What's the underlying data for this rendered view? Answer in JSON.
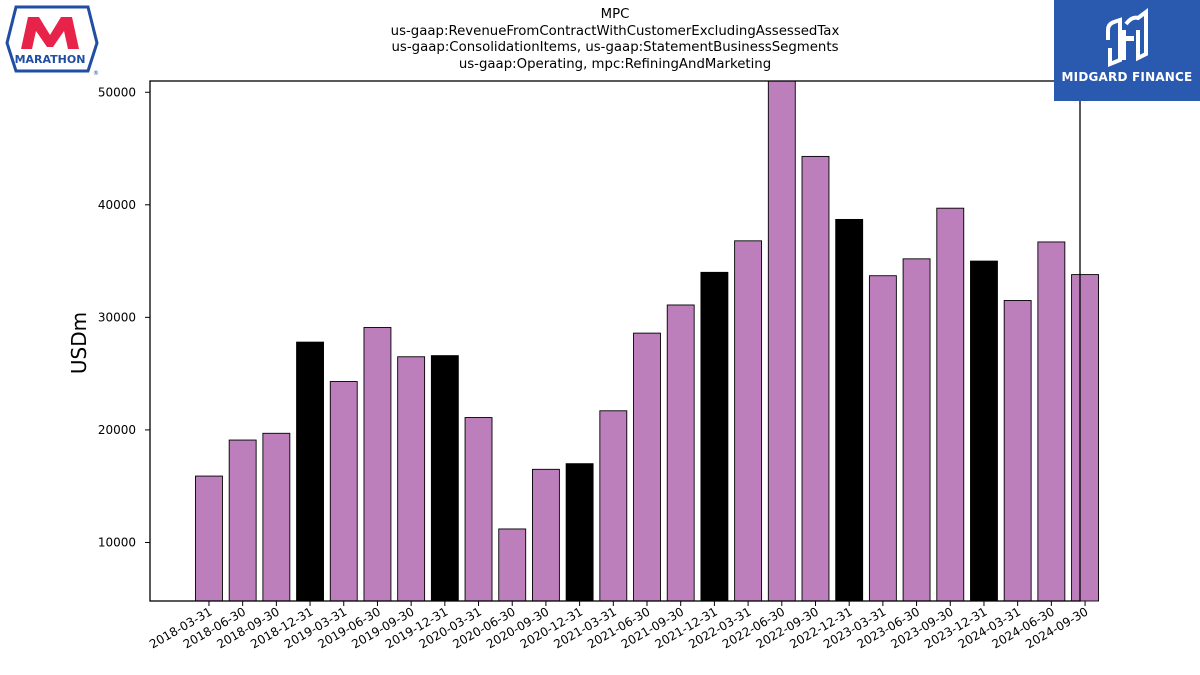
{
  "chart_data": {
    "type": "bar",
    "title_lines": [
      "MPC",
      "us-gaap:RevenueFromContractWithCustomerExcludingAssessedTax",
      "us-gaap:ConsolidationItems, us-gaap:StatementBusinessSegments",
      "us-gaap:Operating, mpc:RefiningAndMarketing"
    ],
    "ylabel": "USDm",
    "ylim": [
      4800,
      51000
    ],
    "yticks": [
      10000,
      20000,
      30000,
      40000,
      50000
    ],
    "grid": false,
    "colors": {
      "default": "#bc7fbc",
      "year_end": "#000000",
      "edge": "#000000"
    },
    "categories": [
      "2018-03-31",
      "2018-06-30",
      "2018-09-30",
      "2018-12-31",
      "2019-03-31",
      "2019-06-30",
      "2019-09-30",
      "2019-12-31",
      "2020-03-31",
      "2020-06-30",
      "2020-09-30",
      "2020-12-31",
      "2021-03-31",
      "2021-06-30",
      "2021-09-30",
      "2021-12-31",
      "2022-03-31",
      "2022-06-30",
      "2022-09-30",
      "2022-12-31",
      "2023-03-31",
      "2023-06-30",
      "2023-09-30",
      "2023-12-31",
      "2024-03-31",
      "2024-06-30",
      "2024-09-30"
    ],
    "values": [
      15900,
      19100,
      19700,
      27800,
      24300,
      29100,
      26500,
      26600,
      21100,
      11200,
      16500,
      17000,
      21700,
      28600,
      31100,
      34000,
      36800,
      51500,
      44300,
      38700,
      33700,
      35200,
      39700,
      35000,
      31500,
      36700,
      33800
    ],
    "highlight": [
      false,
      false,
      false,
      true,
      false,
      false,
      false,
      true,
      false,
      false,
      false,
      true,
      false,
      false,
      false,
      true,
      false,
      false,
      false,
      true,
      false,
      false,
      false,
      true,
      false,
      false,
      false
    ]
  },
  "logos": {
    "left": {
      "name": "marathon-logo",
      "text": "MARATHON",
      "color": "#e8234a",
      "border": "#1f4ea3"
    },
    "right": {
      "name": "midgard-finance-logo",
      "text": "MIDGARD FINANCE",
      "bg": "#2a5ab0"
    }
  }
}
